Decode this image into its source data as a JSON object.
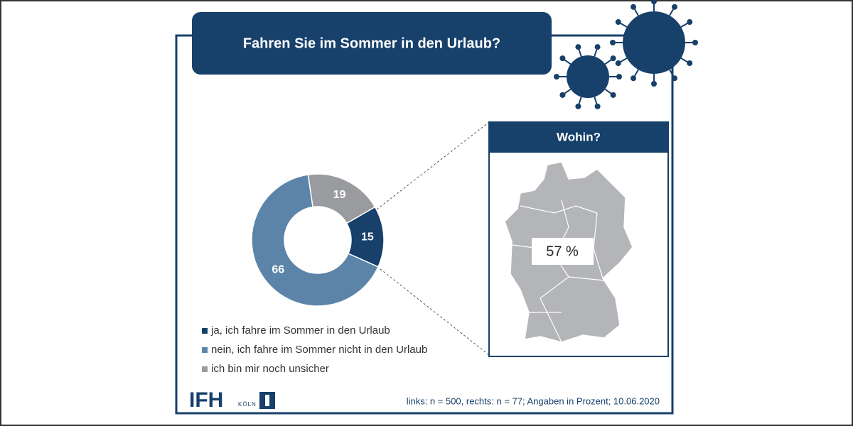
{
  "chart_data": {
    "type": "pie",
    "title": "Fahren Sie im Sommer in den Urlaub?",
    "categories": [
      "ja, ich fahre im Sommer in den Urlaub",
      "nein, ich fahre im Sommer nicht in den Urlaub",
      "ich bin mir noch unsicher"
    ],
    "values": [
      15,
      66,
      19
    ],
    "colors": [
      "#17406a",
      "#5b84a8",
      "#9a9b9f"
    ]
  },
  "inset": {
    "title": "Wohin?",
    "values": [
      57
    ],
    "value_labels": [
      "57 %"
    ]
  },
  "footnote": "links: n = 500, rechts: n = 77; Angaben in Prozent; 10.06.2020",
  "logo": {
    "name": "IFH",
    "city": "KÖLN"
  }
}
